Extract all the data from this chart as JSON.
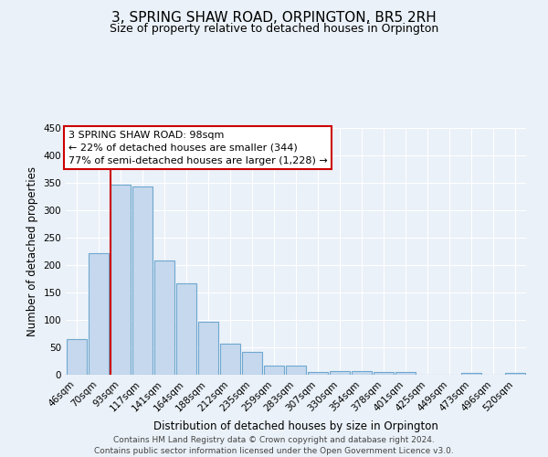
{
  "title": "3, SPRING SHAW ROAD, ORPINGTON, BR5 2RH",
  "subtitle": "Size of property relative to detached houses in Orpington",
  "xlabel": "Distribution of detached houses by size in Orpington",
  "ylabel": "Number of detached properties",
  "bar_labels": [
    "46sqm",
    "70sqm",
    "93sqm",
    "117sqm",
    "141sqm",
    "164sqm",
    "188sqm",
    "212sqm",
    "235sqm",
    "259sqm",
    "283sqm",
    "307sqm",
    "330sqm",
    "354sqm",
    "378sqm",
    "401sqm",
    "425sqm",
    "449sqm",
    "473sqm",
    "496sqm",
    "520sqm"
  ],
  "bar_heights": [
    65,
    222,
    347,
    344,
    208,
    167,
    97,
    57,
    42,
    16,
    16,
    5,
    7,
    7,
    5,
    5,
    0,
    0,
    4,
    0,
    4
  ],
  "bar_color": "#c5d8ed",
  "bar_edge_color": "#6fa8d0",
  "ylim": [
    0,
    450
  ],
  "yticks": [
    0,
    50,
    100,
    150,
    200,
    250,
    300,
    350,
    400,
    450
  ],
  "vline_x_index": 2,
  "vline_color": "#cc0000",
  "annotation_title": "3 SPRING SHAW ROAD: 98sqm",
  "annotation_line1": "← 22% of detached houses are smaller (344)",
  "annotation_line2": "77% of semi-detached houses are larger (1,228) →",
  "annotation_box_color": "#ffffff",
  "annotation_box_edge": "#cc0000",
  "bg_color": "#eaf1f8",
  "footer1": "Contains HM Land Registry data © Crown copyright and database right 2024.",
  "footer2": "Contains public sector information licensed under the Open Government Licence v3.0.",
  "title_fontsize": 11,
  "subtitle_fontsize": 9,
  "axis_label_fontsize": 8.5,
  "tick_fontsize": 7.5,
  "footer_fontsize": 6.5,
  "annotation_fontsize": 8
}
